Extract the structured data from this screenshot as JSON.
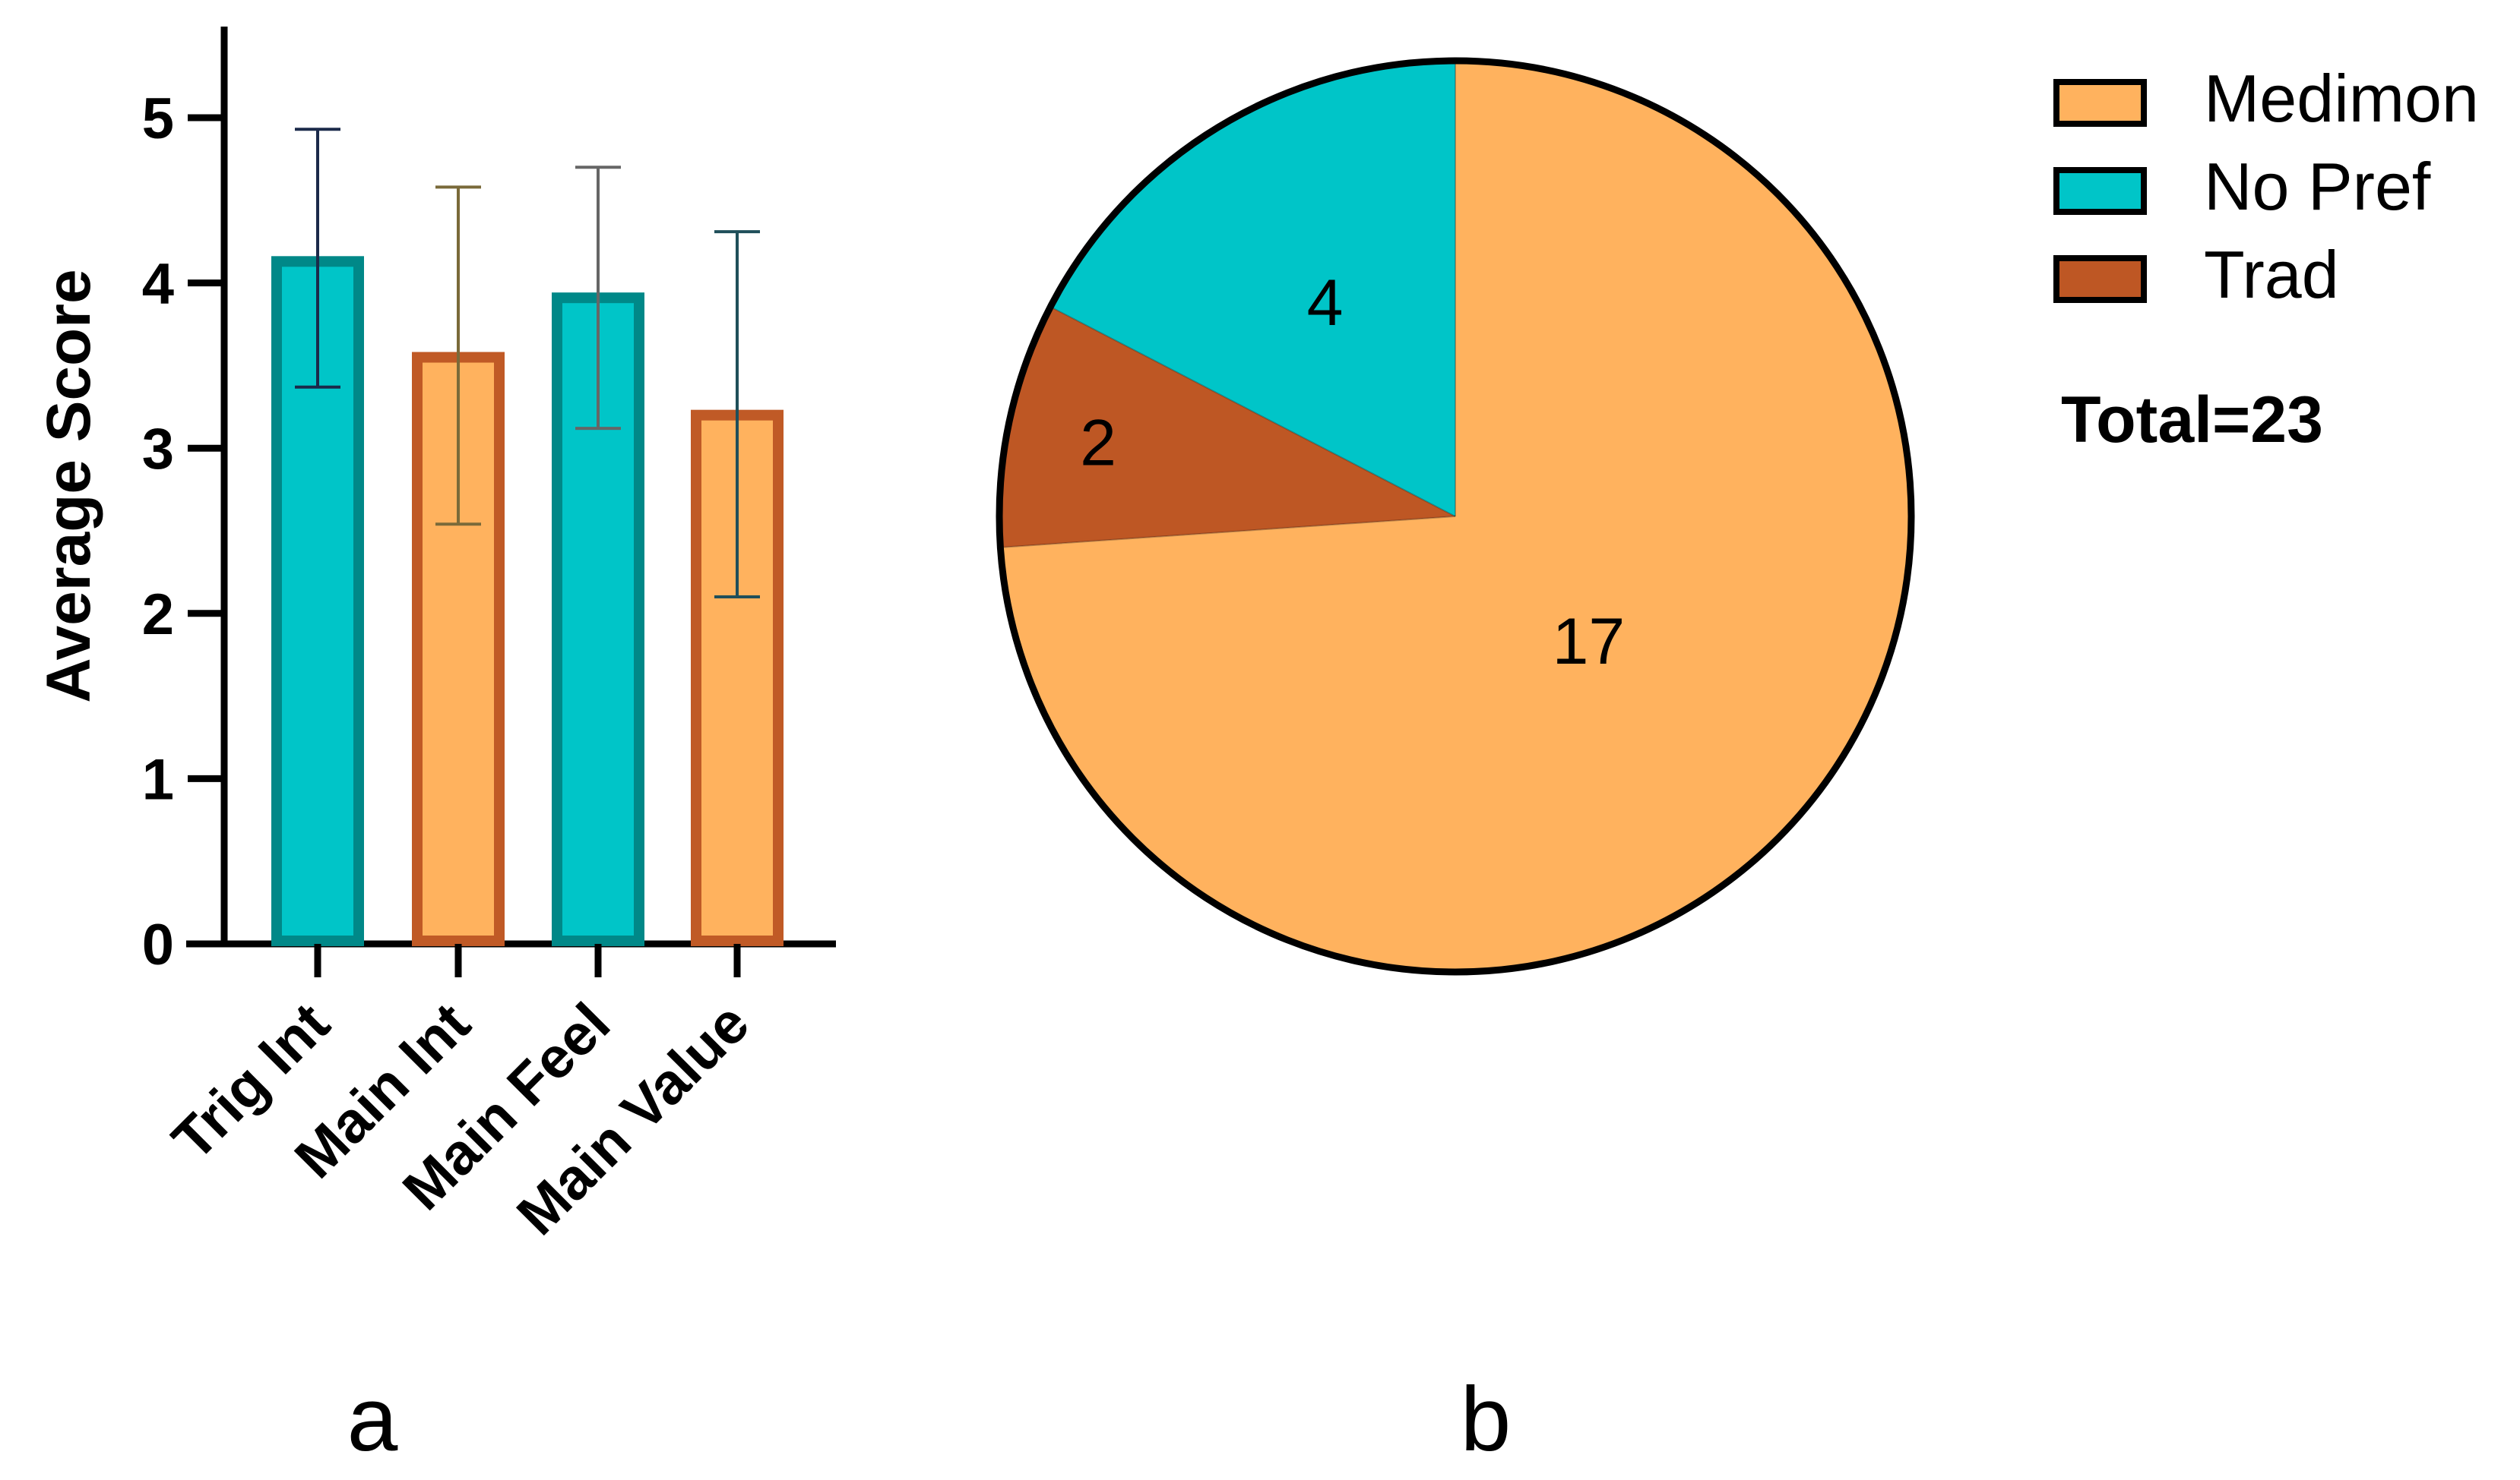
{
  "colors": {
    "teal_fill": "#00C5C8",
    "teal_edge": "#008888",
    "orange_fill": "#FFB25E",
    "orange_edge": "#C05A26",
    "trad_fill": "#BE5724",
    "axis": "#000000"
  },
  "chart_data": [
    {
      "type": "bar",
      "panel_label": "a",
      "categories": [
        "Trig Int",
        "Main Int",
        "Main Feel",
        "Main Value"
      ],
      "values": [
        4.13,
        3.55,
        3.91,
        3.2
      ],
      "error_low": [
        3.37,
        2.54,
        3.12,
        2.1
      ],
      "error_high": [
        4.93,
        4.58,
        4.7,
        4.31
      ],
      "bar_colors": [
        "teal",
        "orange",
        "teal",
        "orange"
      ],
      "ylabel": "Average Score",
      "ylim": [
        0,
        5.5
      ],
      "yticks": [
        0,
        1,
        2,
        3,
        4,
        5
      ],
      "grid": false
    },
    {
      "type": "pie",
      "panel_label": "b",
      "slices": [
        {
          "name": "Medimon",
          "value": 17,
          "label": "17",
          "color": "#FFB25E"
        },
        {
          "name": "No Pref",
          "value": 4,
          "label": "4",
          "color": "#00C5C8"
        },
        {
          "name": "Trad",
          "value": 2,
          "label": "2",
          "color": "#BE5724"
        }
      ],
      "legend": [
        "Medimon",
        "No Pref",
        "Trad"
      ],
      "legend_position": "top-right",
      "total_text": "Total=23"
    }
  ]
}
